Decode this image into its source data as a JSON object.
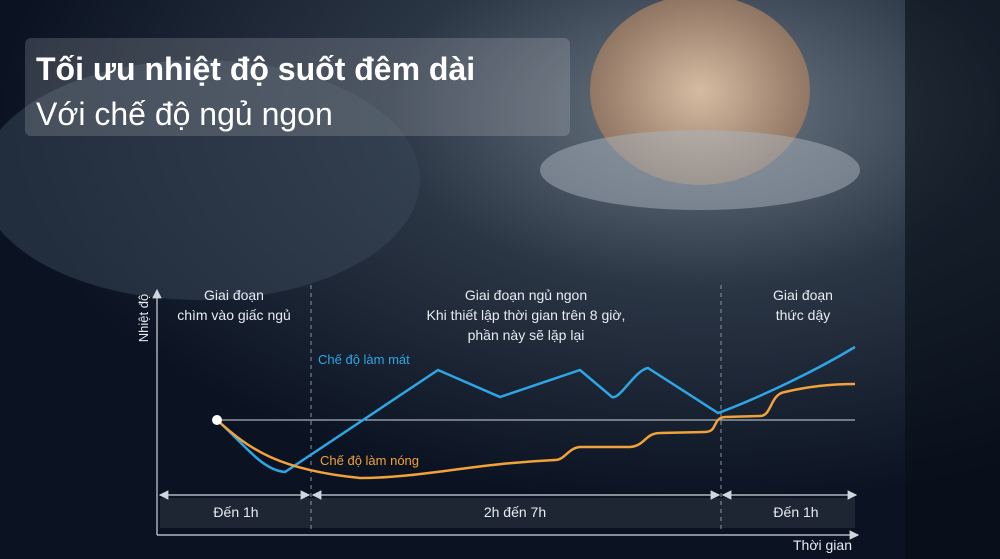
{
  "header": {
    "title": "Tối ưu nhiệt độ suốt đêm dài",
    "subtitle": "Với chế độ ngủ ngon"
  },
  "diagram": {
    "y_axis_label": "Nhiệt độ",
    "x_axis_label": "Thời gian",
    "phases": [
      {
        "label": [
          "Giai đoạn",
          "chìm vào giấc ngủ"
        ],
        "duration": "Đến 1h"
      },
      {
        "label": [
          "Giai đoạn ngủ ngon",
          "Khi thiết lập thời gian trên 8 giờ,",
          "phần này sẽ lặp lại"
        ],
        "duration": "2h đến 7h"
      },
      {
        "label": [
          "Giai đoạn",
          "thức dậy"
        ],
        "duration": "Đến 1h"
      }
    ],
    "curves": [
      {
        "label": "Chế độ làm mát",
        "color": "#2ea6e6"
      },
      {
        "label": "Chế độ làm nóng",
        "color": "#f2a23a"
      }
    ]
  }
}
